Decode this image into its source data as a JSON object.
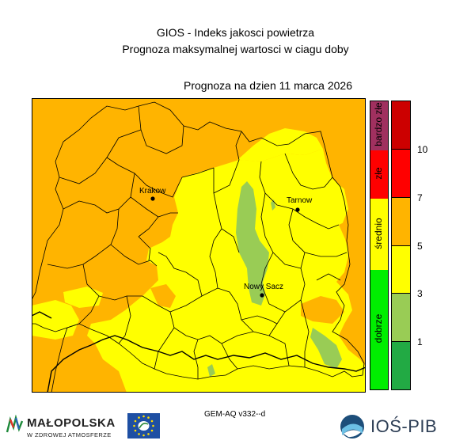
{
  "header": {
    "line1": "GIOS - Indeks jakosci powietrza",
    "line2": "Prognoza maksymalnej wartosci w ciagu doby",
    "date": "Prognoza na dzien  11 marca 2026"
  },
  "map": {
    "cities": [
      {
        "name": "Krakow"
      },
      {
        "name": "Tarnow"
      },
      {
        "name": "Nowy Sacz"
      }
    ],
    "colors": {
      "orange": "#FFB400",
      "yellow": "#FFFF00",
      "light_green": "#99CC55"
    }
  },
  "legend": {
    "categories": [
      {
        "label": "bardzo złe",
        "color": "#A0305F"
      },
      {
        "label": "złe",
        "color": "#FF0000"
      },
      {
        "label": "średnio",
        "color": "#FFFF00"
      },
      {
        "label": "dobrze",
        "color": "#00EE00"
      }
    ],
    "scale": [
      {
        "color": "#CC0000"
      },
      {
        "color": "#FF0000"
      },
      {
        "color": "#FFB400"
      },
      {
        "color": "#FFFF00"
      },
      {
        "color": "#99CC55"
      },
      {
        "color": "#22AA44"
      }
    ],
    "ticks": [
      "10",
      "7",
      "5",
      "3",
      "1"
    ]
  },
  "footer": {
    "model": "GEM-AQ v332--d",
    "malopolska_line1": "MAŁOPOLSKA",
    "malopolska_line2": "W ZDROWEJ ATMOSFERZE",
    "iospib": "IOŚ-PIB"
  }
}
